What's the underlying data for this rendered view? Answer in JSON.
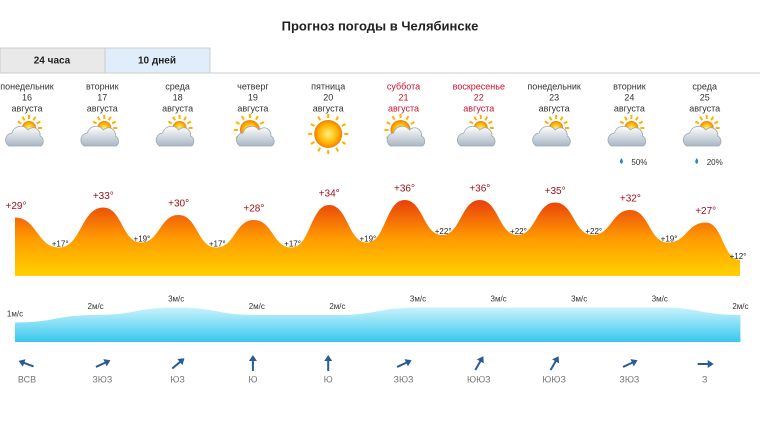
{
  "title": "Прогноз погоды в Челябинске",
  "tabs": [
    "24 часа",
    "10 дней"
  ],
  "days": [
    {
      "weekday": "понедельник",
      "date": "16",
      "month": "августа",
      "day_temp": {
        "value": 29,
        "label": "+29°"
      },
      "night_temp": {
        "value": 17,
        "label": "+17°"
      },
      "wind": {
        "value": 1,
        "label": "1м/с"
      },
      "direction": "ВСВ"
    },
    {
      "weekday": "вторник",
      "date": "17",
      "month": "августа",
      "day_temp": {
        "value": 33,
        "label": "+33°"
      },
      "night_temp": {
        "value": 19,
        "label": "+19°"
      },
      "wind": {
        "value": 2,
        "label": "2м/с"
      },
      "direction": "ЗЮЗ"
    },
    {
      "weekday": "среда",
      "date": "18",
      "month": "августа",
      "day_temp": {
        "value": 30,
        "label": "+30°"
      },
      "night_temp": {
        "value": 17,
        "label": "+17°"
      },
      "wind": {
        "value": 3,
        "label": "3м/с"
      },
      "direction": "ЮЗ"
    },
    {
      "weekday": "четверг",
      "date": "19",
      "month": "августа",
      "day_temp": {
        "value": 28,
        "label": "+28°"
      },
      "night_temp": {
        "value": 17,
        "label": "+17°"
      },
      "wind": {
        "value": 2,
        "label": "2м/с"
      },
      "direction": "Ю"
    },
    {
      "weekday": "пятница",
      "date": "20",
      "month": "августа",
      "day_temp": {
        "value": 34,
        "label": "+34°"
      },
      "night_temp": {
        "value": 19,
        "label": "+19°"
      },
      "wind": {
        "value": 2,
        "label": "2м/с"
      },
      "direction": "Ю"
    },
    {
      "weekday": "суббота",
      "date": "21",
      "month": "августа",
      "day_temp": {
        "value": 36,
        "label": "+36°"
      },
      "night_temp": {
        "value": 22,
        "label": "+22°"
      },
      "wind": {
        "value": 3,
        "label": "3м/с"
      },
      "direction": "ЗЮЗ"
    },
    {
      "weekday": "воскресенье",
      "date": "22",
      "month": "августа",
      "day_temp": {
        "value": 36,
        "label": "+36°"
      },
      "night_temp": {
        "value": 22,
        "label": "+22°"
      },
      "wind": {
        "value": 3,
        "label": "3м/с"
      },
      "direction": "ЮЮЗ"
    },
    {
      "weekday": "понедельник",
      "date": "23",
      "month": "августа",
      "day_temp": {
        "value": 35,
        "label": "+35°"
      },
      "night_temp": {
        "value": 22,
        "label": "+22°"
      },
      "wind": {
        "value": 3,
        "label": "3м/с"
      },
      "direction": "ЮЮЗ"
    },
    {
      "weekday": "вторник",
      "date": "24",
      "month": "августа",
      "precip": "50%",
      "day_temp": {
        "value": 32,
        "label": "+32°"
      },
      "night_temp": {
        "value": 19,
        "label": "+19°"
      },
      "wind": {
        "value": 3,
        "label": "3м/с"
      },
      "direction": "ЗЮЗ"
    },
    {
      "weekday": "среда",
      "date": "25",
      "month": "августа",
      "precip": "20%",
      "day_temp": {
        "value": 27,
        "label": "+27°"
      },
      "night_temp": {
        "value": 12,
        "label": "+12°"
      },
      "wind": {
        "value": 2,
        "label": "2м/с"
      },
      "direction": "З"
    }
  ]
}
